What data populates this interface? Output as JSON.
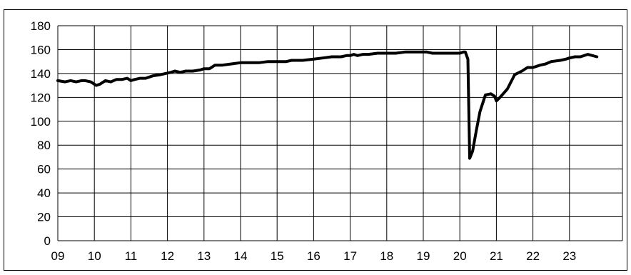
{
  "chart_data": {
    "type": "line",
    "title": "",
    "xlabel": "",
    "ylabel": "",
    "ylim": [
      0,
      180
    ],
    "y_ticks": [
      0,
      20,
      40,
      60,
      80,
      100,
      120,
      140,
      160,
      180
    ],
    "xlim": [
      2009,
      2023.9
    ],
    "x_tick_labels": [
      "09",
      "10",
      "11",
      "12",
      "13",
      "14",
      "15",
      "16",
      "17",
      "18",
      "19",
      "20",
      "21",
      "22",
      "23"
    ],
    "grid": true,
    "legend": "none",
    "series_color": "#000000",
    "series": [
      {
        "x": [
          2009.0,
          2009.2,
          2009.35,
          2009.5,
          2009.65,
          2009.75,
          2009.9,
          2010.05,
          2010.15,
          2010.3,
          2010.45,
          2010.6,
          2010.75,
          2010.9,
          2011.0,
          2011.1,
          2011.25,
          2011.4,
          2011.6,
          2011.8,
          2011.95,
          2012.1,
          2012.2,
          2012.35,
          2012.5,
          2012.7,
          2012.9,
          2013.0,
          2013.15,
          2013.3,
          2013.5,
          2013.75,
          2014.0,
          2014.5,
          2014.75,
          2015.0,
          2015.25,
          2015.4,
          2015.5,
          2015.7,
          2016.0,
          2016.25,
          2016.5,
          2016.75,
          2016.9,
          2017.0,
          2017.1,
          2017.2,
          2017.35,
          2017.5,
          2017.75,
          2017.9,
          2018.0,
          2018.1,
          2018.25,
          2018.5,
          2018.75,
          2018.85,
          2019.0,
          2019.1,
          2019.25,
          2019.5,
          2019.75,
          2020.0,
          2020.1,
          2020.15,
          2020.22,
          2020.27,
          2020.35,
          2020.45,
          2020.55,
          2020.7,
          2020.85,
          2020.95,
          2021.0,
          2021.1,
          2021.3,
          2021.5,
          2021.7,
          2021.85,
          2022.0,
          2022.2,
          2022.35,
          2022.5,
          2022.75,
          2022.9,
          2023.0,
          2023.15,
          2023.3,
          2023.5,
          2023.75
        ],
        "y": [
          134,
          133,
          134,
          133,
          134,
          134,
          133,
          130,
          131,
          134,
          133,
          135,
          135,
          136,
          134,
          135,
          136,
          136,
          138,
          139,
          140,
          141,
          142,
          141,
          142,
          142,
          143,
          144,
          144,
          147,
          147,
          148,
          149,
          149,
          150,
          150,
          150,
          151,
          151,
          151,
          152,
          153,
          154,
          154,
          155,
          155,
          156,
          155,
          156,
          156,
          157,
          157,
          157,
          157,
          157,
          158,
          158,
          158,
          158,
          158,
          157,
          157,
          157,
          157,
          158,
          158,
          152,
          69,
          75,
          92,
          108,
          122,
          123,
          121,
          117,
          120,
          127,
          139,
          142,
          145,
          145,
          147,
          148,
          150,
          151,
          152,
          153,
          154,
          154,
          156,
          154
        ]
      }
    ]
  }
}
